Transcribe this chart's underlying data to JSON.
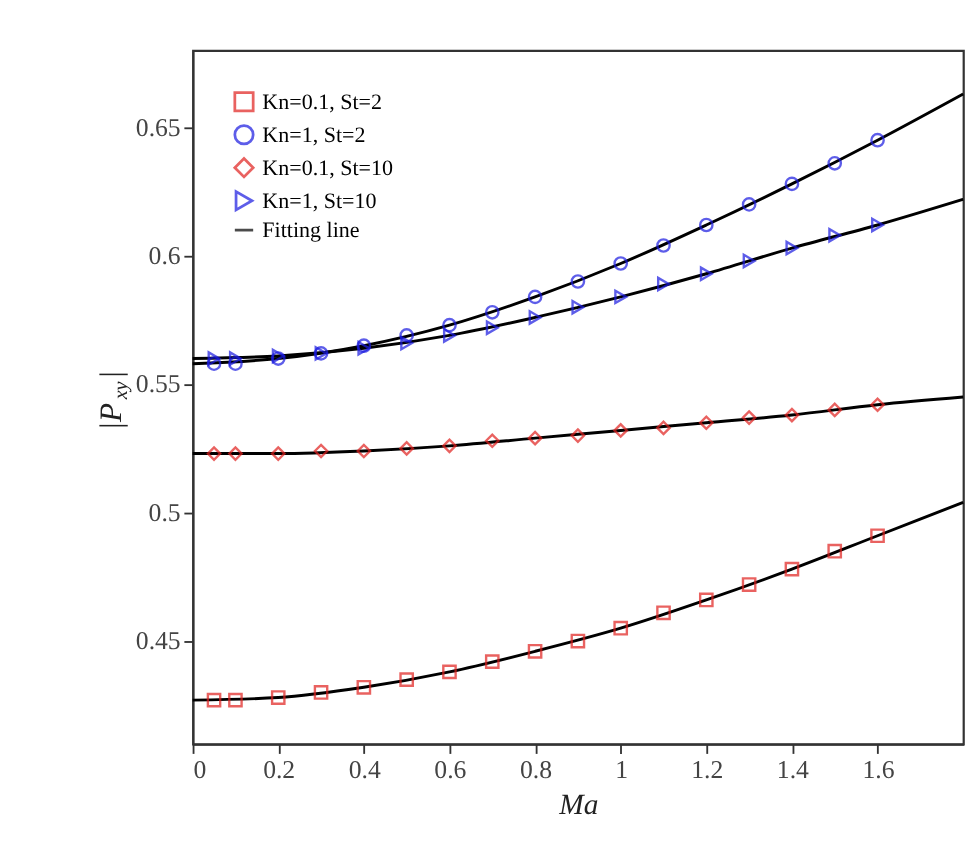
{
  "chart_data": {
    "type": "scatter",
    "xlabel": "Ma",
    "ylabel": "|P$_{xy}$|",
    "xlim": [
      0,
      1.8
    ],
    "xticks": [
      0,
      0.2,
      0.4,
      0.6,
      0.8,
      1,
      1.2,
      1.4,
      1.6
    ],
    "ylim": [
      0.41,
      0.68
    ],
    "yticks": [
      0.45,
      0.5,
      0.55,
      0.6,
      0.65
    ],
    "grid": false,
    "legend": "top left",
    "series": [
      {
        "name": "Kn=0.1, St=2",
        "marker": "square",
        "color": "#e0201e",
        "x": [
          0.05,
          0.1,
          0.2,
          0.3,
          0.4,
          0.5,
          0.6,
          0.7,
          0.8,
          0.9,
          1.0,
          1.1,
          1.2,
          1.3,
          1.4,
          1.5,
          1.6
        ],
        "values": [
          0.427,
          0.427,
          0.428,
          0.43,
          0.432,
          0.435,
          0.438,
          0.442,
          0.446,
          0.45,
          0.455,
          0.461,
          0.466,
          0.472,
          0.478,
          0.485,
          0.491
        ]
      },
      {
        "name": "Kn=1, St=2",
        "marker": "circle",
        "color": "#1a1ae0",
        "x": [
          0.05,
          0.1,
          0.2,
          0.3,
          0.4,
          0.5,
          0.6,
          0.7,
          0.8,
          0.9,
          1.0,
          1.1,
          1.2,
          1.3,
          1.4,
          1.5,
          1.6
        ],
        "values": [
          0.558,
          0.558,
          0.56,
          0.562,
          0.565,
          0.569,
          0.573,
          0.578,
          0.584,
          0.59,
          0.597,
          0.604,
          0.612,
          0.62,
          0.628,
          0.636,
          0.645
        ]
      },
      {
        "name": "Kn=0.1, St=10",
        "marker": "diamond",
        "color": "#e0201e",
        "x": [
          0.05,
          0.1,
          0.2,
          0.3,
          0.4,
          0.5,
          0.6,
          0.7,
          0.8,
          0.9,
          1.0,
          1.1,
          1.2,
          1.3,
          1.4,
          1.5,
          1.6
        ],
        "values": [
          0.523,
          0.523,
          0.523,
          0.524,
          0.524,
          0.525,
          0.526,
          0.528,
          0.529,
          0.53,
          0.532,
          0.533,
          0.535,
          0.537,
          0.538,
          0.54,
          0.542
        ]
      },
      {
        "name": "Kn=1, St=10",
        "marker": "triangle",
        "color": "#1a1ae0",
        "x": [
          0.05,
          0.1,
          0.2,
          0.3,
          0.4,
          0.5,
          0.6,
          0.7,
          0.8,
          0.9,
          1.0,
          1.1,
          1.2,
          1.3,
          1.4,
          1.5,
          1.6
        ],
        "values": [
          0.56,
          0.56,
          0.561,
          0.562,
          0.564,
          0.566,
          0.569,
          0.572,
          0.576,
          0.58,
          0.584,
          0.589,
          0.593,
          0.598,
          0.603,
          0.608,
          0.612
        ]
      },
      {
        "name": "Fitting line",
        "type": "line",
        "marker": "none",
        "line_style": "solid",
        "color": "#000000",
        "x": [
          0,
          0.2,
          0.4,
          0.6,
          0.8,
          1.0,
          1.2,
          1.4,
          1.6,
          1.8
        ],
        "values": [
          0.427,
          0.428,
          0.432,
          0.438,
          0.446,
          0.455,
          0.466,
          0.478,
          0.491,
          0.504
        ]
      },
      {
        "type": "line",
        "marker": "none",
        "line_style": "solid",
        "color": "#000000",
        "x": [
          0,
          0.2,
          0.4,
          0.6,
          0.8,
          1.0,
          1.2,
          1.4,
          1.6,
          1.8
        ],
        "values": [
          0.558,
          0.56,
          0.565,
          0.573,
          0.584,
          0.597,
          0.612,
          0.628,
          0.645,
          0.663
        ]
      },
      {
        "type": "line",
        "marker": "none",
        "line_style": "solid",
        "color": "#000000",
        "x": [
          0,
          0.2,
          0.4,
          0.6,
          0.8,
          1.0,
          1.2,
          1.4,
          1.6,
          1.8
        ],
        "values": [
          0.523,
          0.523,
          0.524,
          0.526,
          0.529,
          0.532,
          0.535,
          0.538,
          0.542,
          0.545
        ]
      },
      {
        "type": "line",
        "marker": "none",
        "line_style": "solid",
        "color": "#000000",
        "x": [
          0,
          0.2,
          0.4,
          0.6,
          0.8,
          1.0,
          1.2,
          1.4,
          1.6,
          1.8
        ],
        "values": [
          0.56,
          0.561,
          0.564,
          0.569,
          0.576,
          0.584,
          0.593,
          0.603,
          0.612,
          0.622
        ]
      }
    ]
  }
}
